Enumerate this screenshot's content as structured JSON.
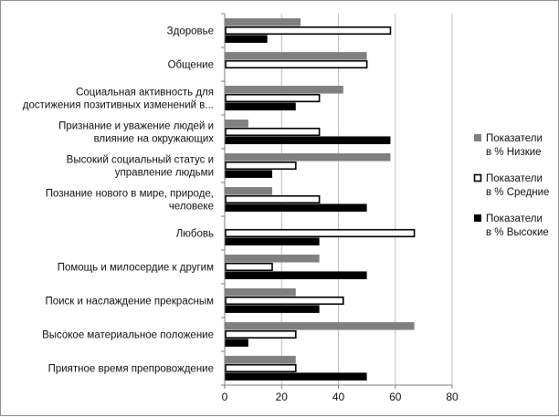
{
  "chart_data": {
    "type": "bar",
    "orientation": "horizontal",
    "categories": [
      [
        "Здоровье"
      ],
      [
        "Общение"
      ],
      [
        "Социальная активность для",
        "достижения позитивных изменений в..."
      ],
      [
        "Признание и уважение людей и",
        "влияние на окружающих"
      ],
      [
        "Высокий социальный статус и",
        "управление людьми"
      ],
      [
        "Познание нового в мире, природе,",
        "человеке"
      ],
      [
        "Любовь"
      ],
      [
        "Помощь и милосердие к другим"
      ],
      [
        "Поиск и наслаждение прекрасным"
      ],
      [
        "Высокое материальное положение"
      ],
      [
        "Приятное время препровождение"
      ]
    ],
    "series": [
      {
        "name": [
          "Показатели",
          "в % Низкие"
        ],
        "color": "#808080",
        "style": "filled",
        "values": [
          26.7,
          50,
          41.7,
          8.3,
          58.3,
          16.7,
          0,
          33.3,
          25,
          66.7,
          25
        ]
      },
      {
        "name": [
          "Показатели",
          "в % Средние"
        ],
        "color": "#ffffff",
        "style": "outlined",
        "values": [
          58.3,
          50,
          33.3,
          33.3,
          25,
          33.3,
          66.7,
          16.7,
          41.7,
          25,
          25
        ]
      },
      {
        "name": [
          "Показатели",
          "в % Высокие"
        ],
        "color": "#000000",
        "style": "filled",
        "values": [
          15,
          0,
          25,
          58.3,
          16.7,
          50,
          33.3,
          50,
          33.3,
          8.3,
          50
        ]
      }
    ],
    "x_ticks": [
      "0",
      "20",
      "40",
      "60",
      "80"
    ],
    "xlim": [
      0,
      80
    ],
    "grid": "vertical",
    "legend_position": "right"
  }
}
